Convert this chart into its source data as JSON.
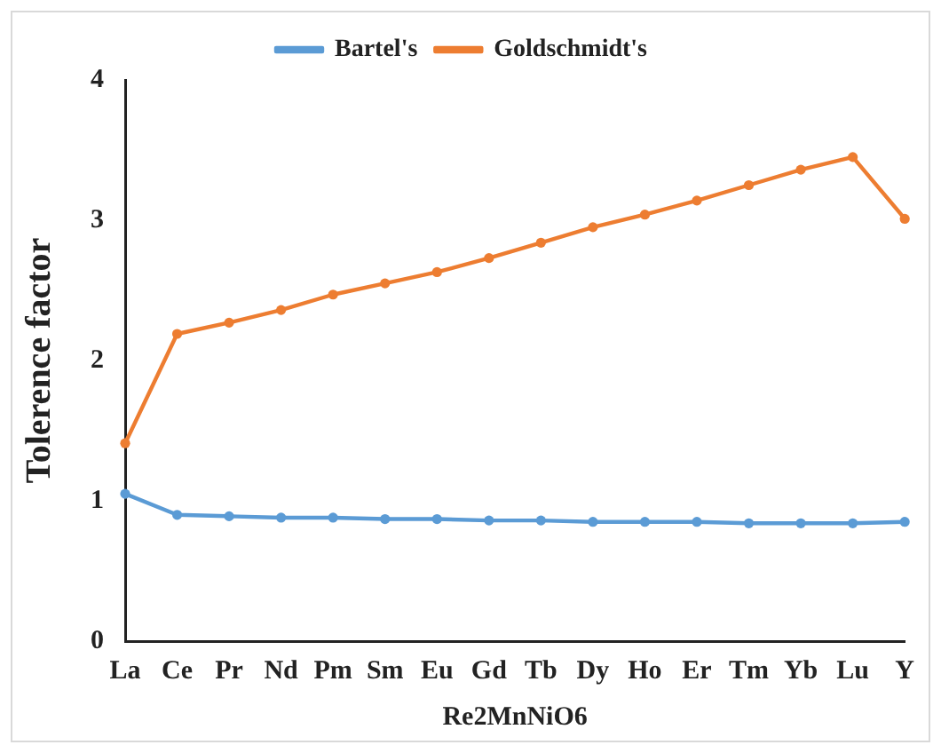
{
  "chart_data": {
    "type": "line",
    "xlabel": "Re2MnNiO6",
    "ylabel": "Tolerence factor",
    "categories": [
      "La",
      "Ce",
      "Pr",
      "Nd",
      "Pm",
      "Sm",
      "Eu",
      "Gd",
      "Tb",
      "Dy",
      "Ho",
      "Er",
      "Tm",
      "Yb",
      "Lu",
      "Y"
    ],
    "series": [
      {
        "name": "Bartel's",
        "color": "#5b9bd5",
        "values": [
          1.05,
          0.9,
          0.89,
          0.88,
          0.88,
          0.87,
          0.87,
          0.86,
          0.86,
          0.85,
          0.85,
          0.85,
          0.84,
          0.84,
          0.84,
          0.85
        ]
      },
      {
        "name": "Goldschmidt's",
        "color": "#ed7d31",
        "values": [
          1.41,
          2.19,
          2.27,
          2.36,
          2.47,
          2.55,
          2.63,
          2.73,
          2.84,
          2.95,
          3.04,
          3.14,
          3.25,
          3.36,
          3.45,
          3.01
        ]
      }
    ],
    "ylim": [
      0,
      4
    ],
    "yticks": [
      0,
      1,
      2,
      3,
      4
    ],
    "grid": false,
    "legend": "top",
    "marker": "circle",
    "line_style": "solid"
  }
}
